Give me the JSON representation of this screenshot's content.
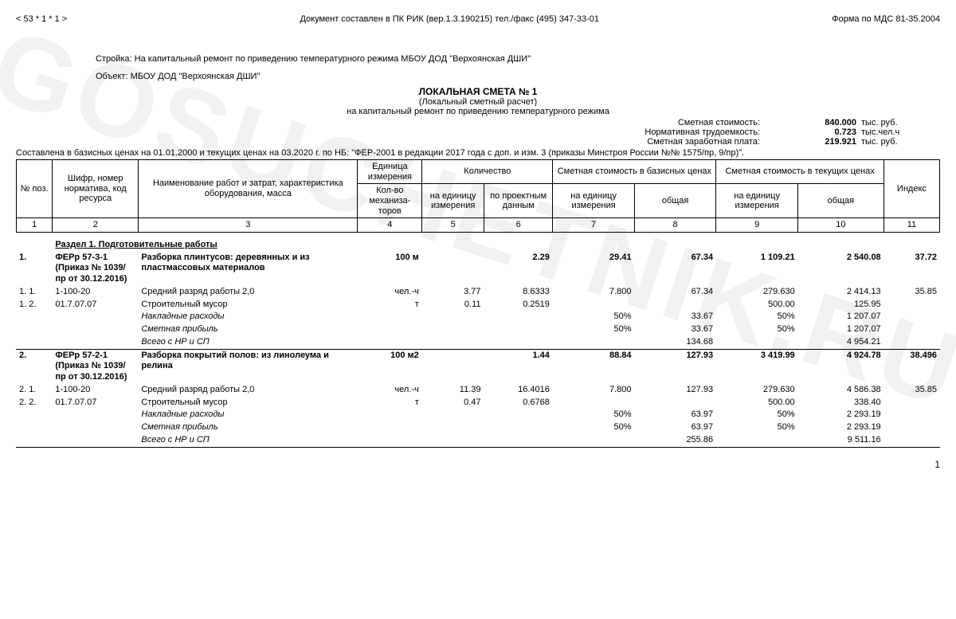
{
  "header": {
    "left": "< 53 * 1 * 1 >",
    "center": "Документ составлен в ПК РИК (вер.1.3.190215) тел./факс (495) 347-33-01",
    "right": "Форма по МДС 81-35.2004"
  },
  "meta": {
    "stroyka_label": "Стройка:",
    "stroyka_value": "На капитальный ремонт по приведению температурного режима МБОУ ДОД \"Верхоянская ДШИ\"",
    "object_label": "Объект:",
    "object_value": "МБОУ ДОД \"Верхоянская ДШИ\""
  },
  "title": {
    "main": "ЛОКАЛЬНАЯ СМЕТА № 1",
    "sub1": "(Локальный сметный расчет)",
    "sub2": "на капитальный ремонт по приведению температурного режима"
  },
  "summary": [
    {
      "label": "Сметная стоимость:",
      "value": "840.000",
      "unit": "тыс. руб."
    },
    {
      "label": "Нормативная трудоемкость:",
      "value": "0.723",
      "unit": "тыс.чел.ч"
    },
    {
      "label": "Сметная заработная плата:",
      "value": "219.921",
      "unit": "тыс. руб."
    }
  ],
  "basis": "Составлена в базисных ценах на 01.01.2000 и текущих ценах на 03.2020 г. по НБ: \"ФЕР-2001 в редакции 2017 года с доп. и изм. 3 (приказы Минстроя России №№ 1575/пр, 9/пр)\".",
  "columns": {
    "widths": [
      42,
      100,
      255,
      75,
      72,
      80,
      95,
      95,
      95,
      100,
      65
    ],
    "row1": {
      "c1": "№ поз.",
      "c2": "Шифр, номер норматива, код ресурса",
      "c3": "Наименование работ и затрат, характеристика оборудования, масса",
      "c4": "Единица измерения",
      "c5": "Количество",
      "c6": "Сметная стоимость в базисных ценах",
      "c7": "Сметная стоимость в текущих ценах",
      "c8": "Индекс"
    },
    "row2": {
      "c4": "Кол-во механиза-торов",
      "c5a": "на единицу измерения",
      "c5b": "по проектным данным",
      "c6a": "на единицу измерения",
      "c6b": "общая",
      "c7a": "на единицу измерения",
      "c7b": "общая"
    },
    "nums": [
      "1",
      "2",
      "3",
      "4",
      "5",
      "6",
      "7",
      "8",
      "9",
      "10",
      "11"
    ]
  },
  "section": {
    "title": "Раздел 1.   Подготовительные работы"
  },
  "rows": [
    {
      "pos": "1.",
      "code": "ФЕРр 57-3-1 (Приказ № 1039/пр от 30.12.2016)",
      "name": "Разборка плинтусов: деревянных и из пластмассовых материалов",
      "unit": "100 м",
      "per_unit": "",
      "proj": "2.29",
      "base_unit": "29.41",
      "base_total": "67.34",
      "cur_unit": "1 109.21",
      "cur_total": "2 540.08",
      "index": "37.72",
      "bold": true,
      "sub": [
        {
          "pos": "1. 1.",
          "code": "1-100-20",
          "name": "Средний разряд работы 2,0",
          "unit": "чел.-ч",
          "per_unit": "3.77",
          "proj": "8.6333",
          "base_unit": "7.800",
          "base_total": "67.34",
          "cur_unit": "279.630",
          "cur_total": "2 414.13",
          "index": "35.85"
        },
        {
          "pos": "1. 2.",
          "code": "01.7.07.07",
          "name": "Строительный мусор",
          "unit": "т",
          "per_unit": "0.11",
          "proj": "0.2519",
          "base_unit": "",
          "base_total": "",
          "cur_unit": "500.00",
          "cur_total": "125.95",
          "index": ""
        },
        {
          "pos": "",
          "code": "",
          "name": "Накладные расходы",
          "unit": "",
          "per_unit": "",
          "proj": "",
          "base_unit": "50%",
          "base_total": "33.67",
          "cur_unit": "50%",
          "cur_total": "1 207.07",
          "index": "",
          "italic": true
        },
        {
          "pos": "",
          "code": "",
          "name": "Сметная прибыль",
          "unit": "",
          "per_unit": "",
          "proj": "",
          "base_unit": "50%",
          "base_total": "33.67",
          "cur_unit": "50%",
          "cur_total": "1 207.07",
          "index": "",
          "italic": true
        },
        {
          "pos": "",
          "code": "",
          "name": "Всего с НР и СП",
          "unit": "",
          "per_unit": "",
          "proj": "",
          "base_unit": "",
          "base_total": "134.68",
          "cur_unit": "",
          "cur_total": "4 954.21",
          "index": "",
          "italic": true,
          "sep": true
        }
      ]
    },
    {
      "pos": "2.",
      "code": "ФЕРр 57-2-1 (Приказ № 1039/пр от 30.12.2016)",
      "name": "Разборка покрытий полов: из линолеума и релина",
      "unit": "100 м2",
      "per_unit": "",
      "proj": "1.44",
      "base_unit": "88.84",
      "base_total": "127.93",
      "cur_unit": "3 419.99",
      "cur_total": "4 924.78",
      "index": "38.496",
      "bold": true,
      "sub": [
        {
          "pos": "2. 1.",
          "code": "1-100-20",
          "name": "Средний разряд работы 2,0",
          "unit": "чел.-ч",
          "per_unit": "11.39",
          "proj": "16.4016",
          "base_unit": "7.800",
          "base_total": "127.93",
          "cur_unit": "279.630",
          "cur_total": "4 586.38",
          "index": "35.85"
        },
        {
          "pos": "2. 2.",
          "code": "01.7.07.07",
          "name": "Строительный мусор",
          "unit": "т",
          "per_unit": "0.47",
          "proj": "0.6768",
          "base_unit": "",
          "base_total": "",
          "cur_unit": "500.00",
          "cur_total": "338.40",
          "index": ""
        },
        {
          "pos": "",
          "code": "",
          "name": "Накладные расходы",
          "unit": "",
          "per_unit": "",
          "proj": "",
          "base_unit": "50%",
          "base_total": "63.97",
          "cur_unit": "50%",
          "cur_total": "2 293.19",
          "index": "",
          "italic": true
        },
        {
          "pos": "",
          "code": "",
          "name": "Сметная прибыль",
          "unit": "",
          "per_unit": "",
          "proj": "",
          "base_unit": "50%",
          "base_total": "63.97",
          "cur_unit": "50%",
          "cur_total": "2 293.19",
          "index": "",
          "italic": true
        },
        {
          "pos": "",
          "code": "",
          "name": "Всего с НР и СП",
          "unit": "",
          "per_unit": "",
          "proj": "",
          "base_unit": "",
          "base_total": "255.86",
          "cur_unit": "",
          "cur_total": "9 511.16",
          "index": "",
          "italic": true,
          "sep": true
        }
      ]
    }
  ],
  "watermark": "GOSUCHETNIK.RU",
  "page_number": "1"
}
